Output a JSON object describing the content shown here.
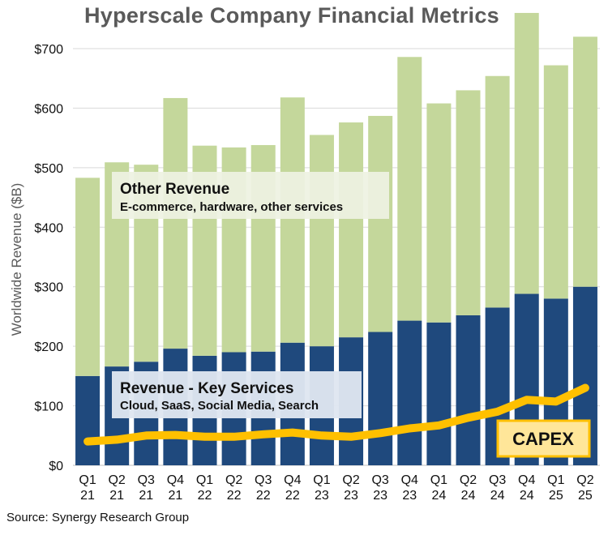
{
  "chart_data": {
    "type": "bar",
    "title": "Hyperscale Company Financial Metrics",
    "ylabel": "Worldwide Revenue ($B)",
    "xlabel": "",
    "ylim": [
      0,
      700
    ],
    "yticks": [
      "$0",
      "$100",
      "$200",
      "$300",
      "$400",
      "$500",
      "$600",
      "$700"
    ],
    "ytick_values": [
      0,
      100,
      200,
      300,
      400,
      500,
      600,
      700
    ],
    "grid": true,
    "categories": [
      [
        "Q1",
        "21"
      ],
      [
        "Q2",
        "21"
      ],
      [
        "Q3",
        "21"
      ],
      [
        "Q4",
        "21"
      ],
      [
        "Q1",
        "22"
      ],
      [
        "Q2",
        "22"
      ],
      [
        "Q3",
        "22"
      ],
      [
        "Q4",
        "22"
      ],
      [
        "Q1",
        "23"
      ],
      [
        "Q2",
        "23"
      ],
      [
        "Q3",
        "23"
      ],
      [
        "Q4",
        "23"
      ],
      [
        "Q1",
        "24"
      ],
      [
        "Q2",
        "24"
      ],
      [
        "Q3",
        "24"
      ],
      [
        "Q4",
        "24"
      ],
      [
        "Q1",
        "25"
      ],
      [
        "Q2",
        "25"
      ]
    ],
    "series": [
      {
        "name": "Revenue - Key Services",
        "type": "stacked-bar",
        "color": "#1f497d",
        "values": [
          150,
          166,
          174,
          196,
          184,
          190,
          191,
          206,
          200,
          215,
          224,
          243,
          240,
          252,
          265,
          288,
          280,
          300
        ]
      },
      {
        "name": "Other Revenue",
        "type": "stacked-bar",
        "color": "#c4d79b",
        "values": [
          333,
          343,
          331,
          421,
          353,
          344,
          347,
          412,
          355,
          361,
          363,
          443,
          368,
          378,
          389,
          472,
          392,
          420
        ]
      },
      {
        "name": "CAPEX",
        "type": "line",
        "color": "#ffc000",
        "values": [
          40,
          43,
          50,
          51,
          48,
          48,
          52,
          55,
          50,
          48,
          54,
          62,
          67,
          80,
          90,
          110,
          107,
          130
        ]
      }
    ],
    "annotations": {
      "other_revenue": {
        "title": "Other Revenue",
        "subtitle": "E-commerce, hardware, other services"
      },
      "key_services": {
        "title": "Revenue - Key Services",
        "subtitle": "Cloud, SaaS, Social Media, Search"
      },
      "capex_label": "CAPEX"
    },
    "source": "Source: Synergy Research Group"
  },
  "colors": {
    "title": "#5a5a5a",
    "key_services": "#1f497d",
    "other_revenue": "#c4d79b",
    "capex": "#ffc000",
    "capex_label_bg": "#ffe699",
    "grid": "#d9d9d9"
  }
}
